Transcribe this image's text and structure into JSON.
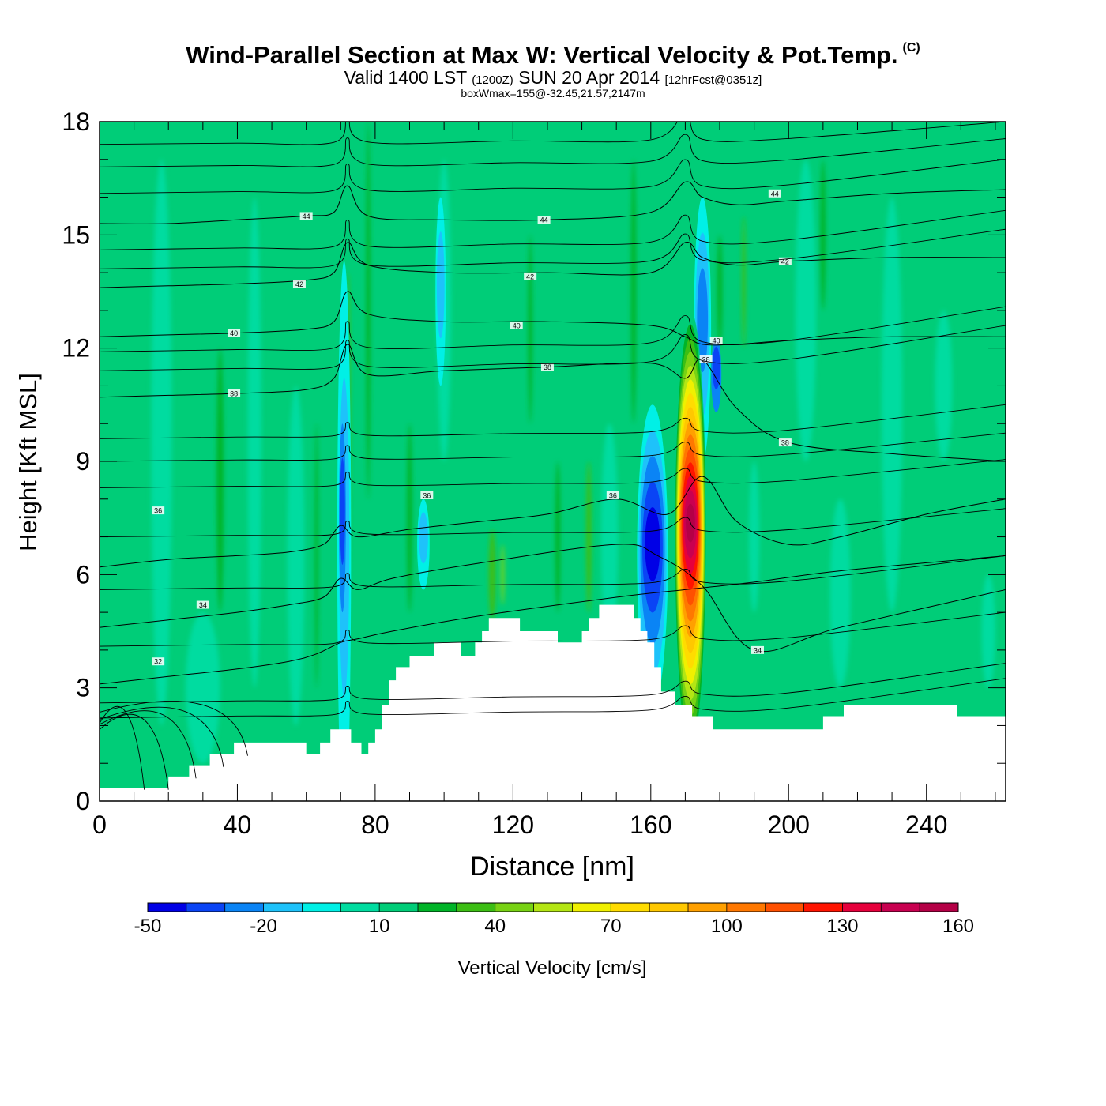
{
  "header": {
    "title_main": "Wind-Parallel Section at Max W: Vertical Velocity & Pot.Temp.",
    "title_copyright": "(C)",
    "valid_prefix": "Valid 1400 LST",
    "valid_utc": "(1200Z)",
    "valid_date": "SUN 20 Apr 2014",
    "forecast_tag": "[12hrFcst@0351z]",
    "subtitle": "boxWmax=155@-32.45,21.57,2147m"
  },
  "chart_data": {
    "type": "heatmap",
    "xlabel": "Distance [nm]",
    "ylabel": "Height [Kft MSL]",
    "xlim": [
      0,
      263
    ],
    "ylim": [
      0,
      18
    ],
    "x_ticks": [
      "0",
      "40",
      "80",
      "120",
      "160",
      "200",
      "240"
    ],
    "y_ticks": [
      "0",
      "3",
      "6",
      "9",
      "12",
      "15",
      "18"
    ],
    "colorbar": {
      "label": "Vertical Velocity [cm/s]",
      "tick_labels": [
        "-50",
        "-20",
        "10",
        "40",
        "70",
        "100",
        "130",
        "160"
      ],
      "levels": [
        -50,
        -40,
        -30,
        -20,
        -10,
        0,
        10,
        20,
        30,
        40,
        50,
        60,
        70,
        80,
        90,
        100,
        110,
        120,
        130,
        140,
        150,
        160
      ],
      "colors": [
        "#0000e6",
        "#0a44f5",
        "#0a84f5",
        "#1ec2fa",
        "#00f0e6",
        "#00dca0",
        "#00cd78",
        "#00b428",
        "#3cbe14",
        "#78d214",
        "#b4e614",
        "#f0f000",
        "#ffdc00",
        "#ffc800",
        "#ffa000",
        "#ff7800",
        "#ff5000",
        "#ff1400",
        "#e6003c",
        "#c80050",
        "#b40046"
      ]
    },
    "terrain_kft": [
      [
        0,
        0.35
      ],
      [
        10,
        0.35
      ],
      [
        20,
        0.35
      ],
      [
        20,
        0.65
      ],
      [
        26,
        0.65
      ],
      [
        26,
        0.95
      ],
      [
        32,
        0.95
      ],
      [
        32,
        1.25
      ],
      [
        39,
        1.25
      ],
      [
        39,
        1.55
      ],
      [
        60,
        1.55
      ],
      [
        60,
        1.25
      ],
      [
        64,
        1.25
      ],
      [
        64,
        1.55
      ],
      [
        67,
        1.55
      ],
      [
        67,
        1.9
      ],
      [
        73,
        1.9
      ],
      [
        73,
        1.55
      ],
      [
        76,
        1.55
      ],
      [
        76,
        1.25
      ],
      [
        78,
        1.25
      ],
      [
        78,
        1.55
      ],
      [
        80,
        1.55
      ],
      [
        80,
        1.9
      ],
      [
        82,
        1.9
      ],
      [
        82,
        2.55
      ],
      [
        84,
        2.55
      ],
      [
        84,
        3.2
      ],
      [
        86,
        3.2
      ],
      [
        86,
        3.55
      ],
      [
        90,
        3.55
      ],
      [
        90,
        3.85
      ],
      [
        97,
        3.85
      ],
      [
        97,
        4.2
      ],
      [
        105,
        4.2
      ],
      [
        105,
        3.85
      ],
      [
        109,
        3.85
      ],
      [
        109,
        4.2
      ],
      [
        111,
        4.2
      ],
      [
        111,
        4.5
      ],
      [
        113,
        4.5
      ],
      [
        113,
        4.85
      ],
      [
        122,
        4.85
      ],
      [
        122,
        4.5
      ],
      [
        133,
        4.5
      ],
      [
        133,
        4.2
      ],
      [
        140,
        4.2
      ],
      [
        140,
        4.5
      ],
      [
        142,
        4.5
      ],
      [
        142,
        4.85
      ],
      [
        145,
        4.85
      ],
      [
        145,
        5.2
      ],
      [
        155,
        5.2
      ],
      [
        155,
        4.85
      ],
      [
        157,
        4.85
      ],
      [
        157,
        4.5
      ],
      [
        159,
        4.5
      ],
      [
        159,
        4.2
      ],
      [
        161,
        4.2
      ],
      [
        161,
        3.55
      ],
      [
        163,
        3.55
      ],
      [
        163,
        2.9
      ],
      [
        167,
        2.9
      ],
      [
        167,
        2.55
      ],
      [
        172,
        2.55
      ],
      [
        172,
        2.25
      ],
      [
        178,
        2.25
      ],
      [
        178,
        1.9
      ],
      [
        210,
        1.9
      ],
      [
        210,
        2.25
      ],
      [
        216,
        2.25
      ],
      [
        216,
        2.55
      ],
      [
        249,
        2.55
      ],
      [
        249,
        2.25
      ],
      [
        263,
        2.25
      ]
    ],
    "series": [
      {
        "name": "updraft core",
        "x_center": 171.5,
        "y_center": 7.0,
        "peak_cm_s": 155
      },
      {
        "name": "downdraft core",
        "x_center": 160.5,
        "y_center": 6.5,
        "peak_cm_s": -48
      }
    ],
    "contour_label_values": [
      "32",
      "34",
      "36",
      "38",
      "40",
      "42",
      "44"
    ],
    "isentropes_kft": [
      {
        "label": "32",
        "x": [
          0,
          20,
          40,
          55,
          63,
          70,
          75,
          85,
          110,
          150,
          170,
          190,
          215,
          263
        ],
        "y": [
          3.1,
          3.3,
          3.5,
          3.7,
          3.9,
          4.2,
          4.3,
          4.5,
          4.9,
          5.4,
          5.6,
          5.8,
          6.1,
          6.5
        ],
        "labels": [
          [
            17,
            3.7
          ]
        ]
      },
      {
        "label": "34",
        "x": [
          0,
          20,
          40,
          55,
          65,
          70,
          75,
          85,
          110,
          150,
          162,
          175,
          190,
          215,
          263
        ],
        "y": [
          4.6,
          4.8,
          5.0,
          5.2,
          5.4,
          5.9,
          5.6,
          5.9,
          6.3,
          6.8,
          6.5,
          5.7,
          4.0,
          4.6,
          5.6
        ],
        "labels": [
          [
            30,
            5.2
          ],
          [
            191,
            4.0
          ]
        ]
      },
      {
        "label": "36",
        "x": [
          0,
          20,
          40,
          55,
          65,
          70,
          75,
          90,
          110,
          130,
          150,
          165,
          175,
          185,
          200,
          215,
          240,
          263
        ],
        "y": [
          6.2,
          6.4,
          6.5,
          6.6,
          6.8,
          7.3,
          7.0,
          7.2,
          7.4,
          7.6,
          8.0,
          7.6,
          8.6,
          7.4,
          6.8,
          7.0,
          7.6,
          8.0
        ],
        "labels": [
          [
            17,
            7.7
          ],
          [
            95,
            8.1
          ],
          [
            149,
            8.1
          ]
        ]
      },
      {
        "label": "38",
        "x": [
          0,
          20,
          40,
          60,
          68,
          72,
          78,
          100,
          130,
          160,
          170,
          175,
          185,
          200,
          230,
          263
        ],
        "y": [
          10.7,
          10.75,
          10.8,
          10.9,
          11.2,
          12.1,
          11.3,
          11.4,
          11.5,
          11.6,
          11.2,
          11.7,
          10.4,
          9.5,
          9.2,
          9.0
        ],
        "labels": [
          [
            39,
            10.8
          ],
          [
            130,
            11.5
          ],
          [
            176,
            11.7
          ],
          [
            199,
            9.5
          ]
        ]
      },
      {
        "label": "40",
        "x": [
          0,
          20,
          40,
          60,
          68,
          72,
          78,
          100,
          130,
          160,
          170,
          175,
          185,
          200,
          230,
          263
        ],
        "y": [
          12.3,
          12.35,
          12.4,
          12.5,
          12.7,
          13.5,
          12.9,
          12.7,
          12.7,
          12.6,
          12.3,
          12.1,
          12.1,
          12.2,
          12.3,
          12.3
        ],
        "labels": [
          [
            39,
            12.4
          ],
          [
            121,
            12.6
          ],
          [
            179,
            12.2
          ]
        ]
      },
      {
        "label": "42",
        "x": [
          0,
          20,
          40,
          60,
          68,
          72,
          78,
          100,
          130,
          160,
          170,
          175,
          185,
          200,
          230,
          263
        ],
        "y": [
          13.6,
          13.65,
          13.7,
          13.8,
          14.0,
          14.8,
          14.2,
          14.0,
          14.0,
          14.0,
          14.8,
          14.4,
          14.2,
          14.3,
          14.4,
          14.4
        ],
        "labels": [
          [
            58,
            13.7
          ],
          [
            125,
            13.9
          ],
          [
            199,
            14.3
          ]
        ]
      },
      {
        "label": "44",
        "x": [
          0,
          20,
          40,
          60,
          68,
          72,
          78,
          100,
          130,
          160,
          170,
          175,
          185,
          200,
          230,
          263
        ],
        "y": [
          15.3,
          15.3,
          15.4,
          15.5,
          15.6,
          16.3,
          15.5,
          15.4,
          15.4,
          15.6,
          16.4,
          16.0,
          15.8,
          15.9,
          16.1,
          16.2
        ],
        "labels": [
          [
            60,
            15.5
          ],
          [
            129,
            15.4
          ],
          [
            196,
            16.1
          ]
        ]
      }
    ]
  }
}
